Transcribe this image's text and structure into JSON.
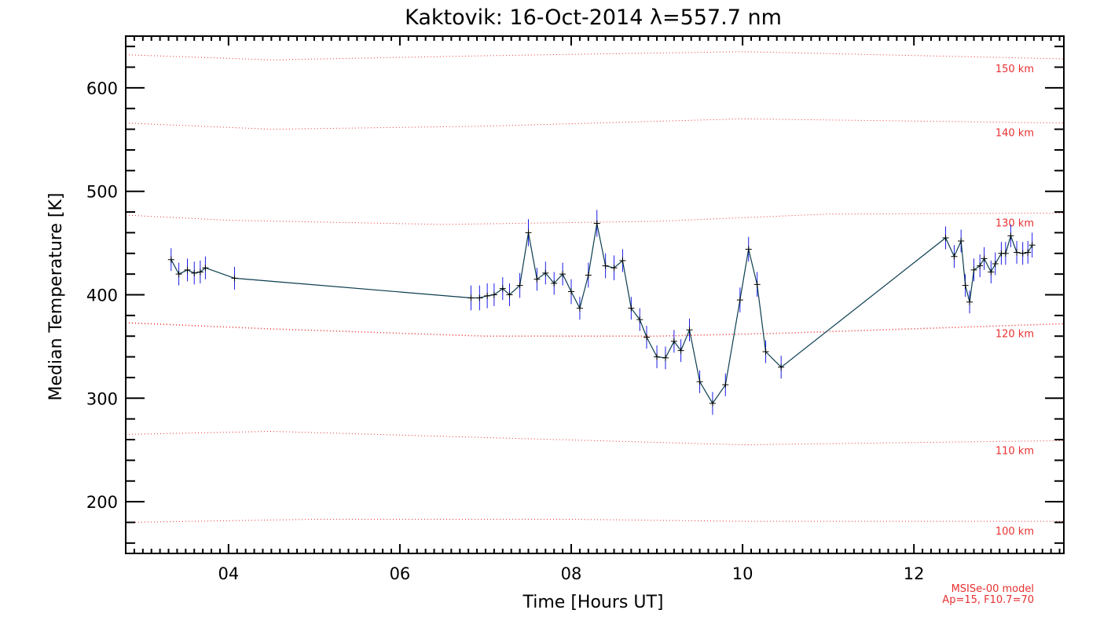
{
  "chart_data": {
    "type": "line",
    "title": "Kaktovik: 16-Oct-2014 λ=557.7 nm",
    "xlabel": "Time [Hours UT]",
    "ylabel": "Median Temperature [K]",
    "xlim": [
      2.8,
      13.75
    ],
    "ylim": [
      150,
      650
    ],
    "x_ticks": [
      4,
      6,
      8,
      10,
      12
    ],
    "x_tick_labels": [
      "04",
      "06",
      "08",
      "10",
      "12"
    ],
    "y_ticks": [
      200,
      300,
      400,
      500,
      600
    ],
    "y_tick_labels": [
      "200",
      "300",
      "400",
      "500",
      "600"
    ],
    "series": [
      {
        "color": "#0a3d4f",
        "error_color": "#1c1ce8",
        "x": [
          3.33,
          3.42,
          3.52,
          3.6,
          3.67,
          3.73,
          4.07,
          6.83,
          6.93,
          7.02,
          7.1,
          7.2,
          7.28,
          7.4,
          7.5,
          7.6,
          7.7,
          7.8,
          7.9,
          8.0,
          8.1,
          8.2,
          8.3,
          8.4,
          8.5,
          8.6,
          8.7,
          8.8,
          8.88,
          9.0,
          9.1,
          9.2,
          9.28,
          9.38,
          9.5,
          9.65,
          9.8,
          9.97,
          10.07,
          10.17,
          10.27,
          10.45,
          12.37,
          12.47,
          12.55,
          12.6,
          12.65,
          12.7,
          12.77,
          12.82,
          12.9,
          12.95,
          13.02,
          13.07,
          13.13,
          13.2,
          13.27,
          13.33,
          13.38
        ],
        "y": [
          434,
          420,
          424,
          421,
          422,
          426,
          416,
          397,
          397,
          399,
          400,
          406,
          400,
          409,
          460,
          415,
          421,
          411,
          420,
          403,
          387,
          419,
          469,
          428,
          426,
          433,
          387,
          376,
          359,
          340,
          339,
          355,
          346,
          366,
          316,
          295,
          313,
          395,
          444,
          410,
          345,
          330,
          455,
          437,
          452,
          409,
          393,
          424,
          428,
          435,
          422,
          430,
          440,
          440,
          457,
          441,
          440,
          441,
          448
        ],
        "errors": [
          11,
          11,
          11,
          11,
          11,
          11,
          11,
          12,
          12,
          12,
          11,
          11,
          11,
          12,
          13,
          11,
          11,
          11,
          11,
          12,
          11,
          12,
          13,
          12,
          12,
          11,
          11,
          11,
          11,
          11,
          11,
          11,
          11,
          11,
          11,
          11,
          11,
          12,
          12,
          12,
          11,
          11,
          11,
          11,
          11,
          11,
          11,
          11,
          11,
          11,
          11,
          11,
          11,
          11,
          11,
          11,
          11,
          11,
          12
        ]
      }
    ],
    "reference_lines": [
      {
        "label": "100 km",
        "x": [
          2.8,
          5.0,
          8.0,
          10.0,
          13.75
        ],
        "y": [
          180,
          183,
          183,
          181,
          181
        ]
      },
      {
        "label": "110 km",
        "x": [
          2.8,
          4.5,
          7.0,
          10.0,
          13.75
        ],
        "y": [
          265,
          268,
          262,
          255,
          259
        ]
      },
      {
        "label": "120 km",
        "x": [
          2.8,
          4.5,
          7.0,
          9.0,
          10.5,
          13.75
        ],
        "y": [
          373,
          367,
          360,
          360,
          363,
          372
        ]
      },
      {
        "label": "130 km",
        "x": [
          2.8,
          4.0,
          6.5,
          9.0,
          11.0,
          13.75
        ],
        "y": [
          477,
          472,
          468,
          471,
          478,
          479
        ]
      },
      {
        "label": "140 km",
        "x": [
          2.8,
          4.5,
          7.0,
          10.0,
          13.75
        ],
        "y": [
          566,
          560,
          563,
          570,
          566
        ]
      },
      {
        "label": "150 km",
        "x": [
          2.8,
          4.5,
          7.0,
          10.0,
          13.75
        ],
        "y": [
          632,
          627,
          631,
          635,
          628
        ]
      }
    ],
    "reference_color": "#e83030",
    "annotation_lines": [
      "MSISe-00 model",
      "Ap=15, F10.7=70"
    ],
    "grid": false
  }
}
